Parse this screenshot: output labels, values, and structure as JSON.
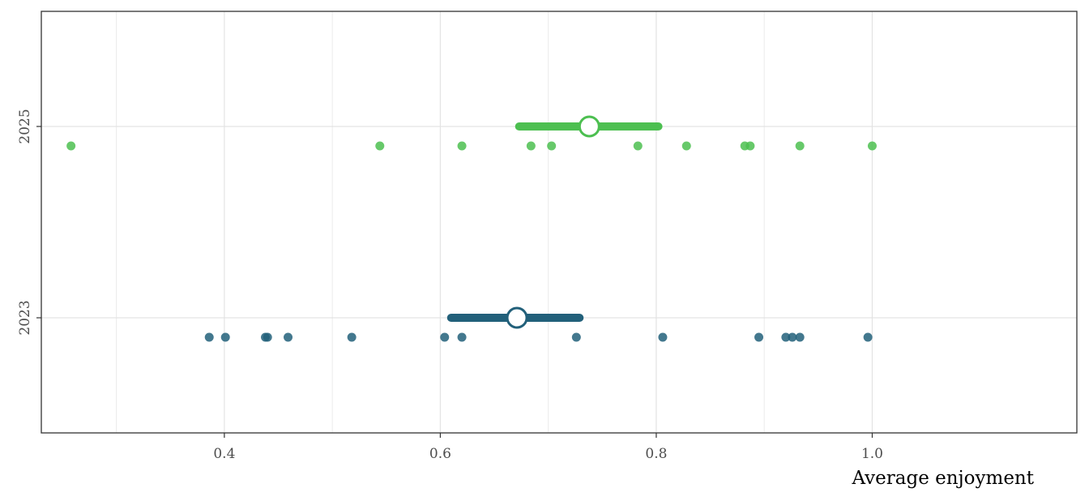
{
  "chart_data": {
    "type": "scatter",
    "xlabel": "Average enjoyment",
    "ylabel": "",
    "xlim": [
      0.2305,
      1.1895
    ],
    "x_ticks": [
      "0.4",
      "0.6",
      "0.8",
      "1.0"
    ],
    "x_tick_values": [
      0.4,
      0.6,
      0.8,
      1.0
    ],
    "x_minor_values": [
      0.3,
      0.5,
      0.7,
      0.9
    ],
    "y_categories": [
      "2023",
      "2025"
    ],
    "grid": true,
    "legend": "none",
    "series": [
      {
        "category": "2025",
        "color": "#4cbf50",
        "points": [
          0.258,
          0.544,
          0.62,
          0.684,
          0.703,
          0.783,
          0.828,
          0.882,
          0.887,
          0.933,
          1.0
        ],
        "mean": 0.738,
        "interval": [
          0.673,
          0.802
        ]
      },
      {
        "category": "2023",
        "color": "#22607a",
        "points": [
          0.386,
          0.401,
          0.438,
          0.44,
          0.459,
          0.518,
          0.604,
          0.62,
          0.726,
          0.806,
          0.895,
          0.92,
          0.926,
          0.933,
          0.996
        ],
        "mean": 0.671,
        "interval": [
          0.61,
          0.729
        ]
      }
    ]
  }
}
